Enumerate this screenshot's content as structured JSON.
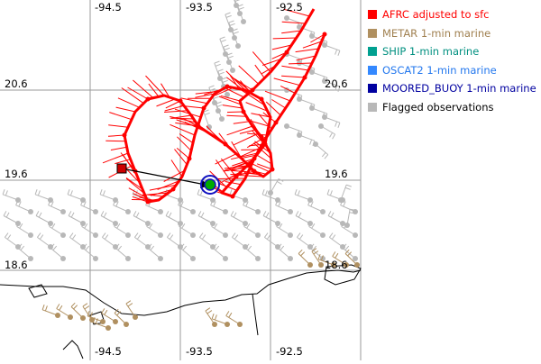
{
  "map": {
    "lon_labels_top": [
      "-94.5",
      "-93.5",
      "-92.5"
    ],
    "lon_labels_bottom": [
      "-94.5",
      "-93.5",
      "-92.5"
    ],
    "lat_labels_left": [
      "20.6",
      "19.6",
      "18.6"
    ],
    "lat_labels_right": [
      "20.6",
      "19.6",
      "18.6"
    ]
  },
  "legend": {
    "items": [
      {
        "label": "AFRC adjusted to sfc",
        "color": "#ff0000"
      },
      {
        "label": "METAR 1-min marine",
        "color": "#b09060"
      },
      {
        "label": "SHIP 1-min marine",
        "color": "#00a090"
      },
      {
        "label": "OSCAT2 1-min marine",
        "color": "#3388ff"
      },
      {
        "label": "MOORED_BUOY 1-min marine",
        "color": "#0000a0"
      },
      {
        "label": "Flagged observations",
        "color": "#b8b8b8"
      }
    ]
  },
  "colors": {
    "afrc": "#ff0000",
    "metar": "#b09060",
    "flagged": "#b8b8b8",
    "center_green": "#00aa00",
    "center_ring": "#1010c0",
    "storm_start": "#cc0000",
    "grid": "#9a9a9a",
    "coast": "#000000"
  }
}
